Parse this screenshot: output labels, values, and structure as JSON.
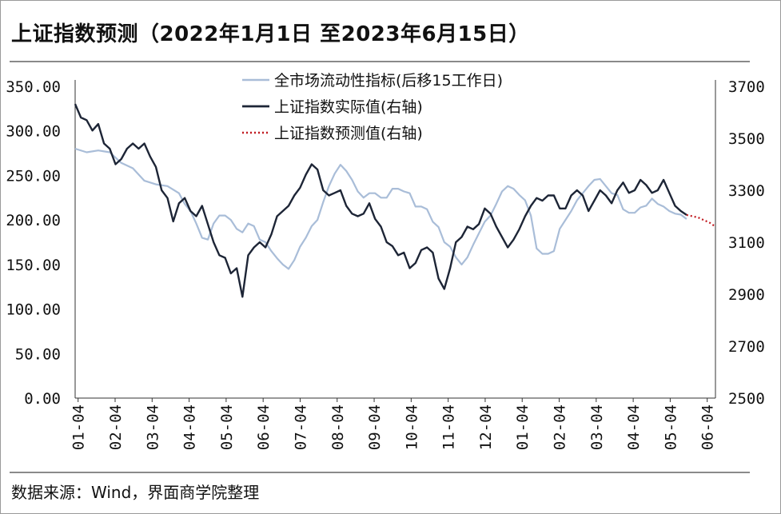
{
  "title": "上证指数预测（2022年1月1日 至2023年6月15日）",
  "source": "数据来源：Wind，界面商学院整理",
  "colors": {
    "liquidity": "#a9bdd8",
    "actual": "#1d2536",
    "forecast": "#c0181e"
  },
  "chart_data": {
    "type": "line",
    "left_axis": {
      "ticks": [
        "350.00",
        "300.00",
        "250.00",
        "200.00",
        "150.00",
        "100.00",
        "50.00",
        "0.00"
      ],
      "ylim": [
        0,
        350
      ]
    },
    "right_axis": {
      "ticks": [
        "3700",
        "3500",
        "3300",
        "3100",
        "2900",
        "2700",
        "2500"
      ],
      "ylim": [
        2500,
        3700
      ]
    },
    "x_ticks": [
      "01-04",
      "02-04",
      "03-04",
      "04-04",
      "05-04",
      "06-04",
      "07-04",
      "08-04",
      "09-04",
      "10-04",
      "11-04",
      "12-04",
      "01-04",
      "02-04",
      "03-04",
      "04-04",
      "05-04",
      "06-04"
    ],
    "series": [
      {
        "name": "全市场流动性指标(后移15工作日)",
        "axis": "left",
        "style": "solid-light",
        "points": [
          [
            0,
            280
          ],
          [
            1,
            276
          ],
          [
            2,
            278
          ],
          [
            3,
            276
          ],
          [
            4,
            264
          ],
          [
            5,
            258
          ],
          [
            6,
            244
          ],
          [
            7,
            240
          ],
          [
            8,
            238
          ],
          [
            9,
            230
          ],
          [
            9.5,
            218
          ],
          [
            10,
            210
          ],
          [
            10.5,
            196
          ],
          [
            11,
            180
          ],
          [
            11.5,
            178
          ],
          [
            12,
            196
          ],
          [
            12.5,
            205
          ],
          [
            13,
            205
          ],
          [
            13.5,
            200
          ],
          [
            14,
            190
          ],
          [
            14.5,
            186
          ],
          [
            15,
            196
          ],
          [
            15.5,
            193
          ],
          [
            16,
            178
          ],
          [
            16.5,
            175
          ],
          [
            17,
            165
          ],
          [
            17.5,
            157
          ],
          [
            18,
            150
          ],
          [
            18.5,
            145
          ],
          [
            19,
            155
          ],
          [
            19.5,
            170
          ],
          [
            20,
            180
          ],
          [
            20.5,
            193
          ],
          [
            21,
            200
          ],
          [
            21.5,
            220
          ],
          [
            22,
            238
          ],
          [
            22.5,
            252
          ],
          [
            23,
            262
          ],
          [
            23.5,
            255
          ],
          [
            24,
            245
          ],
          [
            24.5,
            232
          ],
          [
            25,
            225
          ],
          [
            25.5,
            230
          ],
          [
            26,
            230
          ],
          [
            26.5,
            225
          ],
          [
            27,
            225
          ],
          [
            27.5,
            235
          ],
          [
            28,
            235
          ],
          [
            28.5,
            232
          ],
          [
            29,
            230
          ],
          [
            29.5,
            215
          ],
          [
            30,
            215
          ],
          [
            30.5,
            212
          ],
          [
            31,
            198
          ],
          [
            31.5,
            192
          ],
          [
            32,
            175
          ],
          [
            32.5,
            170
          ],
          [
            33,
            158
          ],
          [
            33.5,
            150
          ],
          [
            34,
            158
          ],
          [
            34.5,
            172
          ],
          [
            35,
            185
          ],
          [
            35.5,
            198
          ],
          [
            36,
            205
          ],
          [
            36.5,
            218
          ],
          [
            37,
            232
          ],
          [
            37.5,
            238
          ],
          [
            38,
            235
          ],
          [
            38.5,
            228
          ],
          [
            39,
            222
          ],
          [
            39.5,
            205
          ],
          [
            40,
            168
          ],
          [
            40.5,
            162
          ],
          [
            41,
            162
          ],
          [
            41.5,
            165
          ],
          [
            42,
            190
          ],
          [
            42.5,
            200
          ],
          [
            43,
            210
          ],
          [
            43.5,
            222
          ],
          [
            44,
            230
          ],
          [
            44.5,
            238
          ],
          [
            45,
            245
          ],
          [
            45.5,
            246
          ],
          [
            46,
            238
          ],
          [
            46.5,
            230
          ],
          [
            47,
            228
          ],
          [
            47.5,
            212
          ],
          [
            48,
            208
          ],
          [
            48.5,
            208
          ],
          [
            49,
            214
          ],
          [
            49.5,
            216
          ],
          [
            50,
            224
          ],
          [
            50.5,
            218
          ],
          [
            51,
            215
          ],
          [
            51.5,
            210
          ],
          [
            52,
            207
          ],
          [
            52.5,
            206
          ],
          [
            53,
            201
          ]
        ]
      },
      {
        "name": "上证指数实际值(右轴)",
        "axis": "right",
        "style": "solid-dark",
        "points": [
          [
            0,
            3632
          ],
          [
            0.5,
            3580
          ],
          [
            1,
            3570
          ],
          [
            1.5,
            3530
          ],
          [
            2,
            3555
          ],
          [
            2.5,
            3480
          ],
          [
            3,
            3460
          ],
          [
            3.5,
            3400
          ],
          [
            4,
            3420
          ],
          [
            4.5,
            3460
          ],
          [
            5,
            3480
          ],
          [
            5.5,
            3460
          ],
          [
            6,
            3480
          ],
          [
            6.5,
            3430
          ],
          [
            7,
            3390
          ],
          [
            7.5,
            3300
          ],
          [
            8,
            3270
          ],
          [
            8.5,
            3180
          ],
          [
            9,
            3250
          ],
          [
            9.5,
            3270
          ],
          [
            10,
            3220
          ],
          [
            10.5,
            3200
          ],
          [
            11,
            3240
          ],
          [
            11.5,
            3170
          ],
          [
            12,
            3100
          ],
          [
            12.5,
            3050
          ],
          [
            13,
            3040
          ],
          [
            13.5,
            2980
          ],
          [
            14,
            3000
          ],
          [
            14.5,
            2890
          ],
          [
            15,
            3050
          ],
          [
            15.5,
            3080
          ],
          [
            16,
            3100
          ],
          [
            16.5,
            3080
          ],
          [
            17,
            3130
          ],
          [
            17.5,
            3200
          ],
          [
            18,
            3220
          ],
          [
            18.5,
            3240
          ],
          [
            19,
            3280
          ],
          [
            19.5,
            3310
          ],
          [
            20,
            3360
          ],
          [
            20.5,
            3400
          ],
          [
            21,
            3380
          ],
          [
            21.5,
            3300
          ],
          [
            22,
            3280
          ],
          [
            22.5,
            3290
          ],
          [
            23,
            3300
          ],
          [
            23.5,
            3240
          ],
          [
            24,
            3210
          ],
          [
            24.5,
            3200
          ],
          [
            25,
            3210
          ],
          [
            25.5,
            3250
          ],
          [
            26,
            3190
          ],
          [
            26.5,
            3160
          ],
          [
            27,
            3100
          ],
          [
            27.5,
            3085
          ],
          [
            28,
            3050
          ],
          [
            28.5,
            3060
          ],
          [
            29,
            3000
          ],
          [
            29.5,
            3020
          ],
          [
            30,
            3070
          ],
          [
            30.5,
            3080
          ],
          [
            31,
            3060
          ],
          [
            31.5,
            2960
          ],
          [
            32,
            2920
          ],
          [
            32.5,
            3000
          ],
          [
            33,
            3100
          ],
          [
            33.5,
            3120
          ],
          [
            34,
            3160
          ],
          [
            34.5,
            3150
          ],
          [
            35,
            3170
          ],
          [
            35.5,
            3230
          ],
          [
            36,
            3210
          ],
          [
            36.5,
            3160
          ],
          [
            37,
            3120
          ],
          [
            37.5,
            3080
          ],
          [
            38,
            3110
          ],
          [
            38.5,
            3150
          ],
          [
            39,
            3200
          ],
          [
            39.5,
            3240
          ],
          [
            40,
            3270
          ],
          [
            40.5,
            3260
          ],
          [
            41,
            3280
          ],
          [
            41.5,
            3280
          ],
          [
            42,
            3230
          ],
          [
            42.5,
            3230
          ],
          [
            43,
            3280
          ],
          [
            43.5,
            3300
          ],
          [
            44,
            3280
          ],
          [
            44.5,
            3220
          ],
          [
            45,
            3260
          ],
          [
            45.5,
            3300
          ],
          [
            46,
            3280
          ],
          [
            46.5,
            3250
          ],
          [
            47,
            3300
          ],
          [
            47.5,
            3330
          ],
          [
            48,
            3290
          ],
          [
            48.5,
            3300
          ],
          [
            49,
            3340
          ],
          [
            49.5,
            3320
          ],
          [
            50,
            3290
          ],
          [
            50.5,
            3300
          ],
          [
            51,
            3340
          ],
          [
            51.5,
            3290
          ],
          [
            52,
            3240
          ],
          [
            52.5,
            3220
          ],
          [
            53,
            3205
          ]
        ]
      },
      {
        "name": "上证指数预测值(右轴)",
        "axis": "right",
        "style": "dotted-red",
        "points": [
          [
            53,
            3205
          ],
          [
            53.5,
            3200
          ],
          [
            54,
            3195
          ],
          [
            54.5,
            3185
          ],
          [
            55,
            3175
          ],
          [
            55.5,
            3160
          ]
        ]
      }
    ]
  }
}
